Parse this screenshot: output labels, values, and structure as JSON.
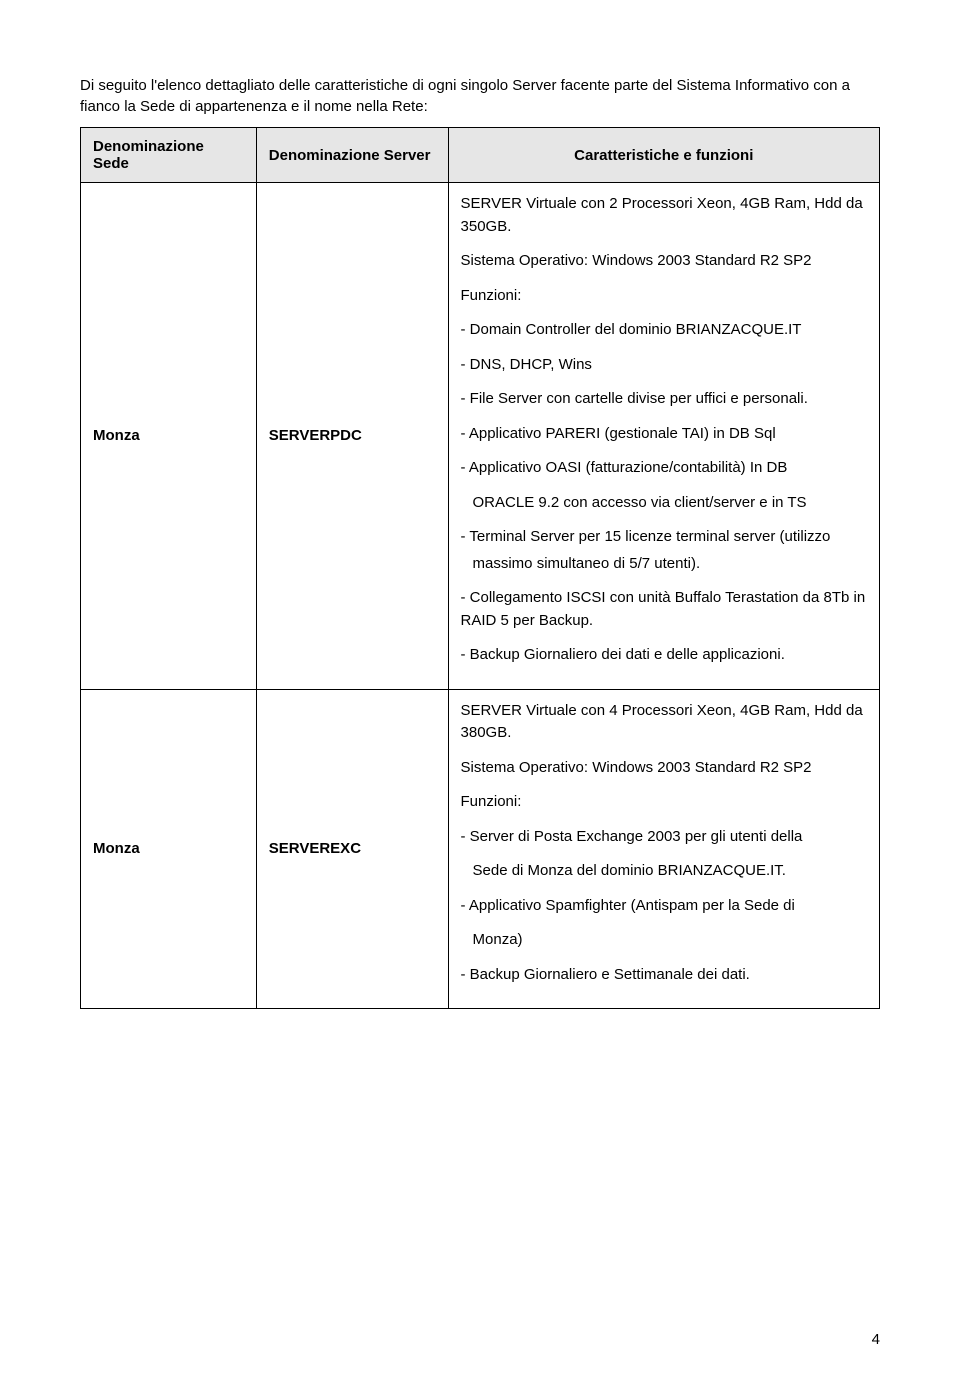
{
  "intro": "Di seguito l'elenco dettagliato delle caratteristiche di ogni singolo Server facente parte del Sistema Informativo con a fianco la Sede di appartenenza e il nome nella Rete:",
  "headers": {
    "sede": "Denominazione Sede",
    "server": "Denominazione Server",
    "caratt": "Caratteristiche e funzioni"
  },
  "rows": [
    {
      "sede": "Monza",
      "server": "SERVERPDC",
      "lines": {
        "l0": "SERVER Virtuale con 2 Processori Xeon, 4GB Ram, Hdd da 350GB.",
        "l1": "Sistema Operativo: Windows 2003 Standard R2 SP2",
        "l2": "Funzioni:",
        "l3": "- Domain Controller del dominio BRIANZACQUE.IT",
        "l4": "- DNS, DHCP, Wins",
        "l5": "- File Server con cartelle divise per uffici e personali.",
        "l6": "- Applicativo PARERI (gestionale TAI) in DB Sql",
        "l7": "- Applicativo OASI (fatturazione/contabilità) In DB",
        "l8": "ORACLE 9.2 con accesso via client/server e in TS",
        "l9": "- Terminal Server per 15 licenze terminal server (utilizzo",
        "l10": "massimo simultaneo di 5/7 utenti).",
        "l11": "- Collegamento ISCSI con unità Buffalo Terastation da 8Tb in RAID 5 per Backup.",
        "l12": "- Backup Giornaliero dei dati e delle applicazioni."
      }
    },
    {
      "sede": "Monza",
      "server": "SERVEREXC",
      "lines": {
        "l0": "SERVER Virtuale con 4 Processori Xeon, 4GB Ram, Hdd da 380GB.",
        "l1": "Sistema Operativo: Windows 2003 Standard R2 SP2",
        "l2": "Funzioni:",
        "l3": "- Server di Posta Exchange 2003 per gli utenti della",
        "l4": "Sede di Monza del dominio BRIANZACQUE.IT.",
        "l5": "- Applicativo Spamfighter (Antispam per la Sede di",
        "l6": "Monza)",
        "l7": "- Backup Giornaliero e Settimanale dei dati."
      }
    }
  ],
  "pageNumber": "4"
}
